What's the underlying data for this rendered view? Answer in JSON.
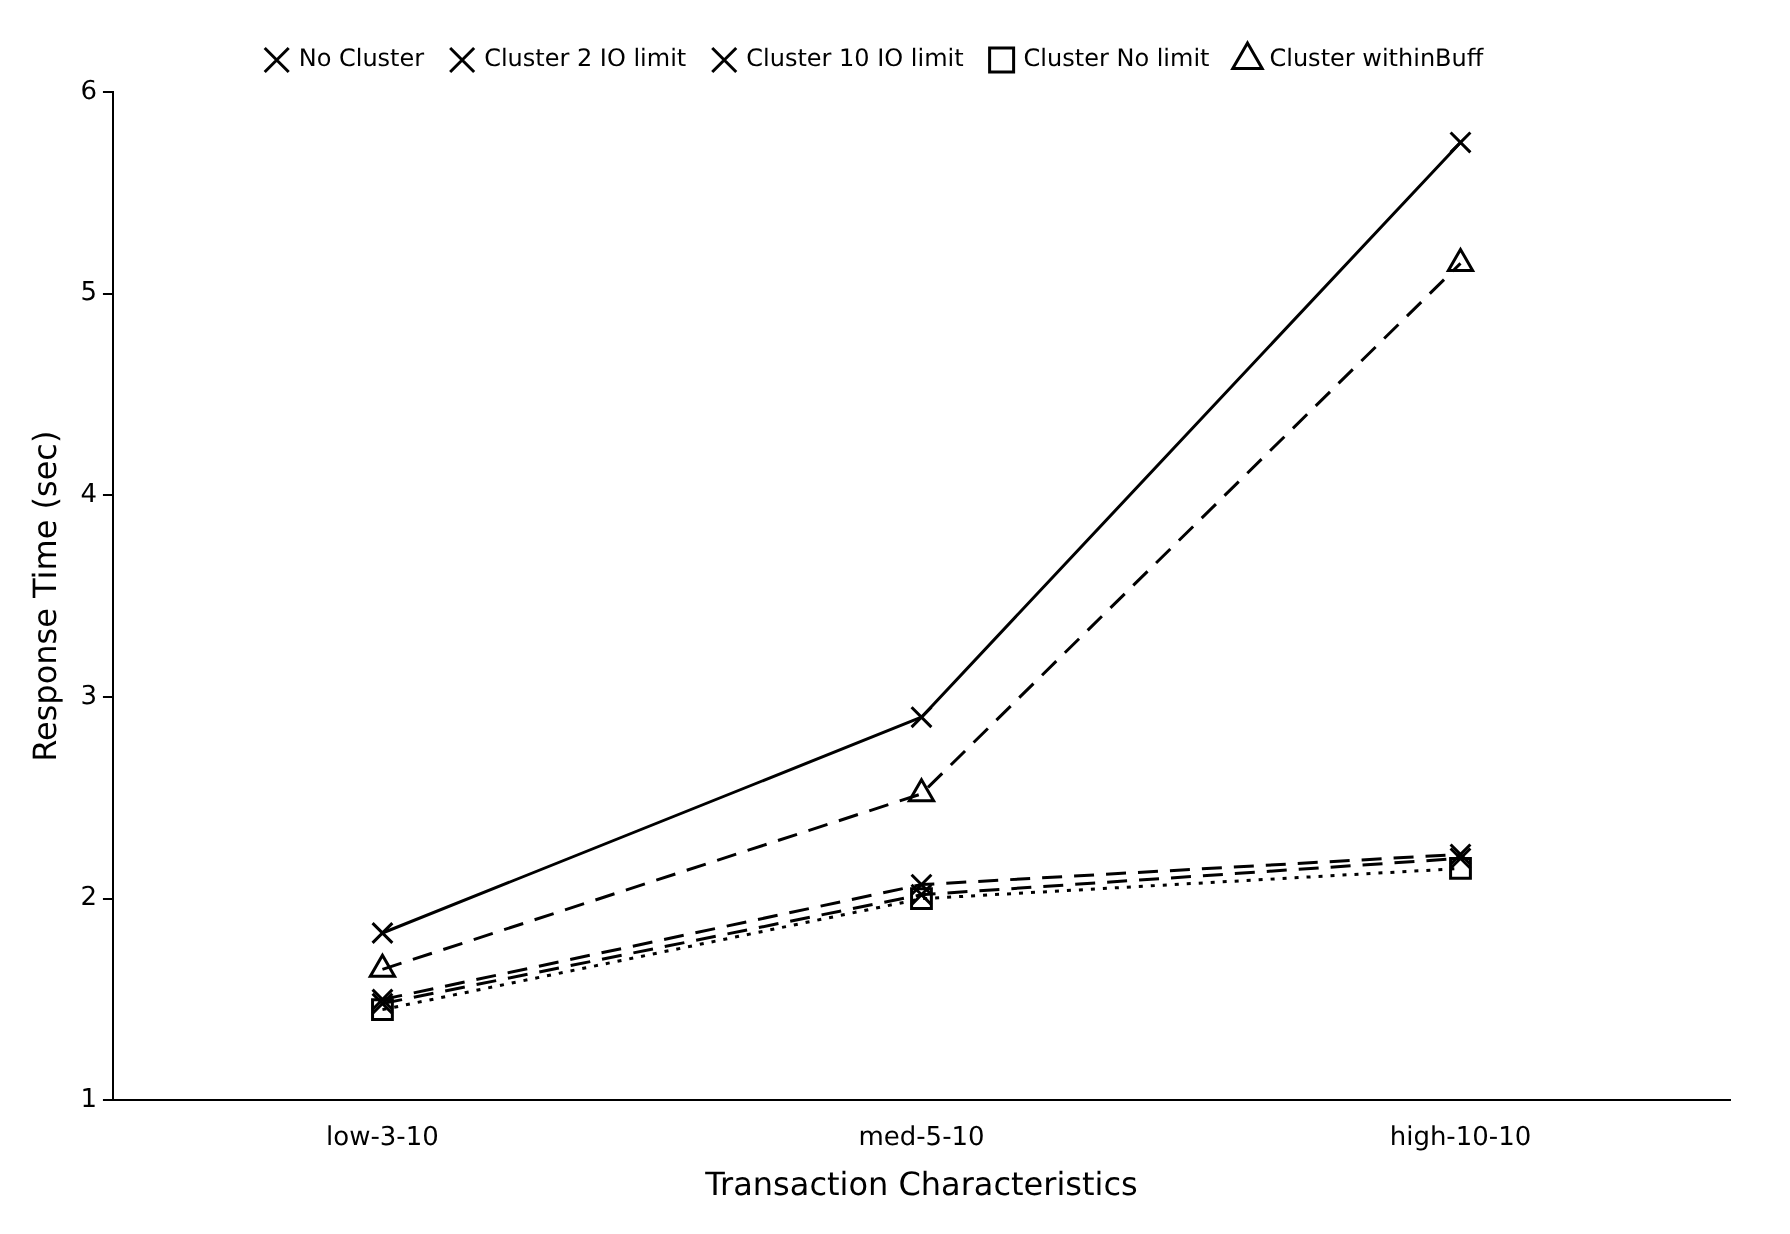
{
  "chart_data": {
    "type": "line",
    "xlabel": "Transaction Characteristics",
    "ylabel": "Response Time (sec)",
    "categories": [
      "low-3-10",
      "med-5-10",
      "high-10-10"
    ],
    "series": [
      {
        "name": "No Cluster",
        "color": "#000000",
        "marker": "cross",
        "line_style": "solid",
        "values": [
          1.83,
          2.9,
          5.75
        ]
      },
      {
        "name": "Cluster 2 IO limit",
        "color": "#000000",
        "marker": "cross",
        "line_style": "dashed",
        "values": [
          1.5,
          2.07,
          2.22
        ]
      },
      {
        "name": "Cluster 10 IO limit",
        "color": "#000000",
        "marker": "cross",
        "line_style": "dashed",
        "values": [
          1.48,
          2.02,
          2.2
        ]
      },
      {
        "name": "Cluster No limit",
        "color": "#000000",
        "marker": "square",
        "line_style": "dotted",
        "values": [
          1.45,
          2.0,
          2.15
        ]
      },
      {
        "name": "Cluster withinBuff",
        "color": "#000000",
        "marker": "triangle",
        "line_style": "dashed",
        "values": [
          1.65,
          2.52,
          5.15
        ]
      }
    ],
    "ylim": [
      1,
      6
    ],
    "yticks": [
      1,
      2,
      3,
      4,
      5,
      6
    ],
    "grid": false,
    "legend": "top"
  }
}
